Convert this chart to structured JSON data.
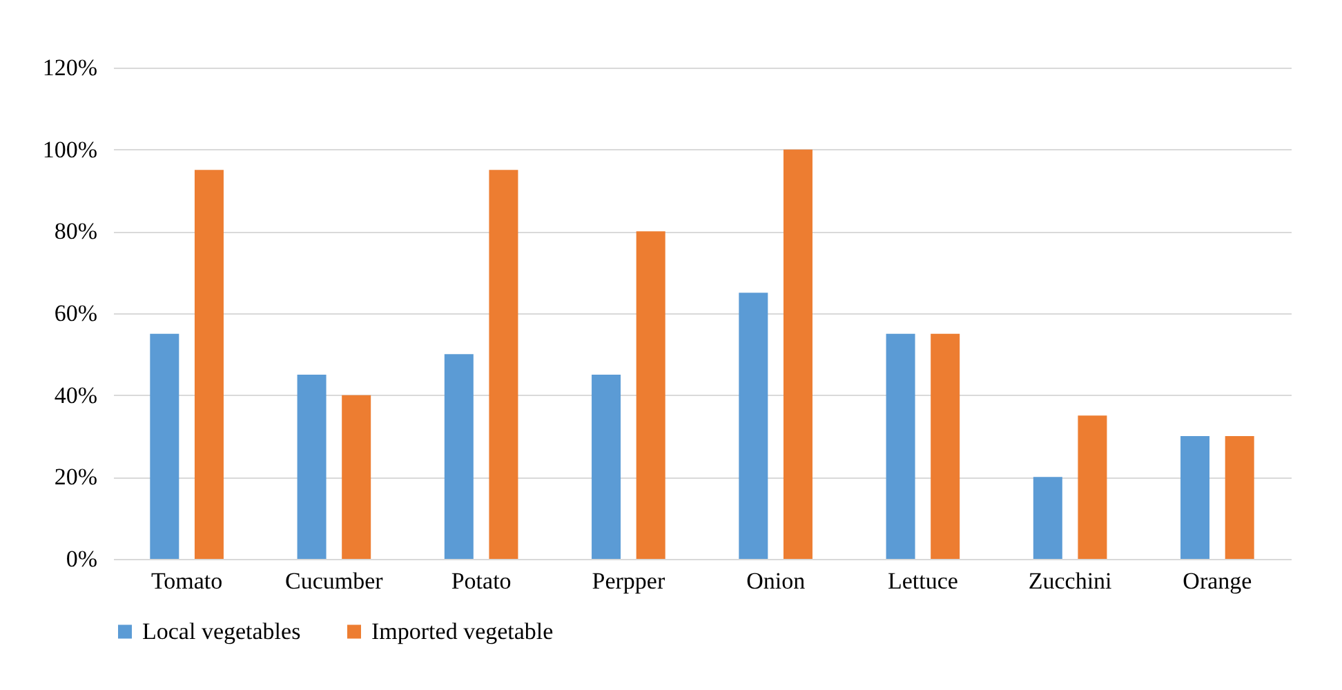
{
  "chart_data": {
    "type": "bar",
    "categories": [
      "Tomato",
      "Cucumber",
      "Potato",
      "Perpper",
      "Onion",
      "Lettuce",
      "Zucchini",
      "Orange"
    ],
    "series": [
      {
        "name": "Local vegetables",
        "color": "#5b9bd5",
        "values": [
          55,
          45,
          50,
          45,
          65,
          55,
          20,
          30
        ]
      },
      {
        "name": "Imported vegetable",
        "color": "#ed7d31",
        "values": [
          95,
          40,
          95,
          80,
          100,
          55,
          35,
          30
        ]
      }
    ],
    "ylim": [
      0,
      120
    ],
    "yticks": [
      {
        "value": 0,
        "label": "0%"
      },
      {
        "value": 20,
        "label": "20%"
      },
      {
        "value": 40,
        "label": "40%"
      },
      {
        "value": 60,
        "label": "60%"
      },
      {
        "value": 80,
        "label": "80%"
      },
      {
        "value": 100,
        "label": "100%"
      },
      {
        "value": 120,
        "label": "120%"
      }
    ],
    "grid": "y",
    "legend": "bottom"
  }
}
